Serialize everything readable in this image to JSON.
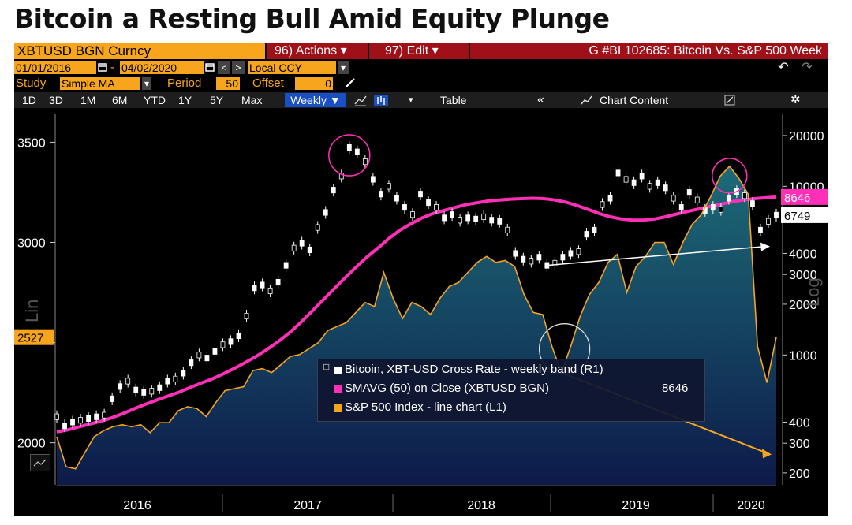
{
  "title": "Bitcoin a Resting Bull Amid Equity Plunge",
  "toolbar": {
    "ticker": "XBTUSD BGN Curncy",
    "actions_label": "96) Actions ▾",
    "edit_label": "97) Edit ▾",
    "chart_id": "G #BI 102685: Bitcoin Vs. S&P 500 Week",
    "start_date": "01/01/2016",
    "end_date": "04/02/2020",
    "date_separator": "-",
    "currency": "Local CCY",
    "study_label": "Study",
    "study_value": "Simple MA",
    "period_label": "Period",
    "period_value": "50",
    "offset_label": "Offset",
    "offset_value": "0",
    "ranges": [
      "1D",
      "3D",
      "1M",
      "6M",
      "YTD",
      "1Y",
      "5Y",
      "Max"
    ],
    "frequency": "Weekly ▼",
    "table_label": "Table",
    "chart_content_label": "Chart Content",
    "collapse_label": "«"
  },
  "icons": {
    "calendar": "calendar-icon",
    "prev": "chevron-left-icon",
    "next": "chevron-right-icon",
    "dropdown": "chevron-down-icon",
    "pencil": "pencil-icon",
    "undo": "undo-icon",
    "redo": "redo-icon",
    "line_chart": "line-chart-icon",
    "bar_chart": "bar-chart-icon",
    "gear": "gear-icon",
    "edit": "edit-icon",
    "mini_chart": "mini-chart-icon"
  },
  "chart_data": {
    "type": "line",
    "x_labels": [
      "2016",
      "2017",
      "2018",
      "2019",
      "2020"
    ],
    "left_axis": {
      "label": "Lin",
      "scale": "linear",
      "ticks": [
        2000,
        2500,
        3000,
        3500
      ],
      "tick_labels": [
        "2000",
        "",
        "3000",
        "3500"
      ],
      "range": [
        1790,
        3600
      ]
    },
    "right_axis": {
      "label": "Log",
      "scale": "log",
      "ticks": [
        200,
        300,
        400,
        1000,
        2000,
        3000,
        4000,
        10000,
        20000
      ],
      "range": [
        170,
        24000
      ]
    },
    "current_value_tags": {
      "sp500_last": "2527",
      "sma_last": "8646",
      "btc_last": "6749"
    },
    "colors": {
      "bitcoin": "#ffffff",
      "sma": "#ff2fb8",
      "sp500": "#f7a51c",
      "area_top": "#1d6a78",
      "area_bottom": "#0d1a4a",
      "annotation_arrow": "#f7a51c",
      "trend_arrow": "#ffffff"
    },
    "series": [
      {
        "name": "Bitcoin, XBT-USD Cross Rate - weekly band (R1)",
        "axis": "right",
        "values": [
          430,
          380,
          400,
          410,
          420,
          430,
          440,
          550,
          650,
          700,
          620,
          600,
          610,
          640,
          700,
          720,
          780,
          900,
          1000,
          960,
          1050,
          1150,
          1200,
          1300,
          1700,
          2500,
          2600,
          2400,
          2700,
          3400,
          4300,
          4600,
          4200,
          5700,
          7000,
          9500,
          11500,
          17000,
          16000,
          14000,
          11000,
          9000,
          10000,
          8500,
          7500,
          6800,
          9000,
          8000,
          7500,
          6500,
          6800,
          6300,
          6500,
          6400,
          6600,
          6300,
          6200,
          5500,
          4000,
          3700,
          3600,
          3800,
          3400,
          3500,
          3800,
          4000,
          4100,
          5200,
          5500,
          7800,
          8500,
          12000,
          11000,
          10500,
          11500,
          10000,
          10500,
          9800,
          8500,
          7500,
          9200,
          8300,
          7200,
          7500,
          7300,
          8500,
          9300,
          8800,
          7900,
          5500,
          6200,
          6749
        ],
        "sma_values": [
          350,
          360,
          375,
          390,
          405,
          425,
          450,
          480,
          510,
          540,
          570,
          600,
          640,
          680,
          720,
          770,
          830,
          900,
          980,
          1080,
          1200,
          1350,
          1550,
          1800,
          2100,
          2450,
          2850,
          3300,
          3800,
          4300,
          4900,
          5500,
          6000,
          6500,
          6900,
          7200,
          7500,
          7800,
          8000,
          8200,
          8300,
          8400,
          8450,
          8500,
          8450,
          8300,
          8050,
          7700,
          7300,
          6900,
          6600,
          6400,
          6300,
          6300,
          6400,
          6600,
          6850,
          7100,
          7350,
          7600,
          7850,
          8100,
          8300,
          8450,
          8550,
          8646
        ]
      },
      {
        "name": "SMAVG (50)  on Close (XBTUSD BGN)",
        "legend_value": "8646",
        "axis": "right"
      },
      {
        "name": "S&P 500 Index - line chart (L1)",
        "axis": "left",
        "values": [
          2030,
          1880,
          1870,
          1950,
          2030,
          2060,
          2080,
          2090,
          2080,
          2090,
          2050,
          2100,
          2100,
          2160,
          2180,
          2170,
          2130,
          2200,
          2260,
          2270,
          2280,
          2360,
          2370,
          2350,
          2390,
          2430,
          2440,
          2470,
          2500,
          2560,
          2580,
          2600,
          2650,
          2700,
          2680,
          2850,
          2720,
          2620,
          2700,
          2680,
          2640,
          2720,
          2780,
          2800,
          2850,
          2900,
          2930,
          2900,
          2910,
          2880,
          2740,
          2650,
          2640,
          2480,
          2350,
          2480,
          2630,
          2740,
          2800,
          2900,
          2940,
          2750,
          2880,
          2930,
          3000,
          3000,
          2890,
          3000,
          3090,
          3140,
          3230,
          3330,
          3380,
          3320,
          3240,
          2480,
          2300,
          2527
        ]
      }
    ],
    "annotations": [
      {
        "type": "circle",
        "where": "bitcoin peak 2017",
        "color": "#ff2fb8"
      },
      {
        "type": "circle",
        "where": "sp500 peak 2020",
        "color": "#ff2fb8"
      },
      {
        "type": "circle",
        "where": "late 2018 low",
        "color": "#dddddd"
      },
      {
        "type": "arrow",
        "where": "sp500 low 2018 to 2020",
        "color": "#f7a51c"
      },
      {
        "type": "arrow",
        "where": "bitcoin low 2018 to 2020",
        "color": "#ffffff"
      }
    ],
    "legend": {
      "placement": "bottom-center"
    }
  }
}
